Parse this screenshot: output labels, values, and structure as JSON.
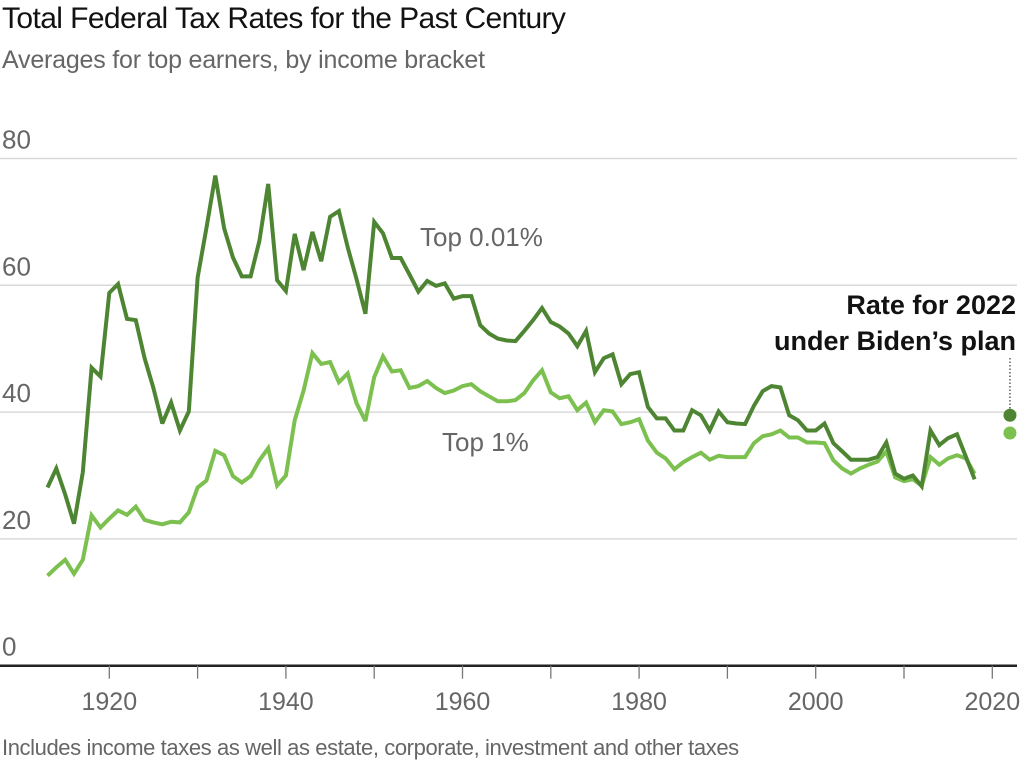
{
  "chart_data": {
    "type": "line",
    "title": "Total Federal Tax Rates for the Past Century",
    "subtitle": "Averages for top earners, by income bracket",
    "note": "Includes income taxes as well as estate, corporate, investment and other taxes",
    "xlabel": "",
    "ylabel": "",
    "xlim": [
      1913,
      2022
    ],
    "ylim": [
      0,
      80
    ],
    "grid": true,
    "yticks": [
      0,
      20,
      40,
      60,
      80
    ],
    "ytick_labels": [
      "0",
      "20",
      "40",
      "60",
      "80"
    ],
    "xticks": [
      1920,
      1930,
      1940,
      1950,
      1960,
      1970,
      1980,
      1990,
      2000,
      2010,
      2020
    ],
    "xtick_labels": [
      "1920",
      "",
      "1940",
      "",
      "1960",
      "",
      "1980",
      "",
      "2000",
      "",
      "2020"
    ],
    "x": [
      1913,
      1914,
      1915,
      1916,
      1917,
      1918,
      1919,
      1920,
      1921,
      1922,
      1923,
      1924,
      1925,
      1926,
      1927,
      1928,
      1929,
      1930,
      1931,
      1932,
      1933,
      1934,
      1935,
      1936,
      1937,
      1938,
      1939,
      1940,
      1941,
      1942,
      1943,
      1944,
      1945,
      1946,
      1947,
      1948,
      1949,
      1950,
      1951,
      1952,
      1953,
      1954,
      1955,
      1956,
      1957,
      1958,
      1959,
      1960,
      1961,
      1962,
      1963,
      1964,
      1965,
      1966,
      1967,
      1968,
      1969,
      1970,
      1971,
      1972,
      1973,
      1974,
      1975,
      1976,
      1977,
      1978,
      1979,
      1980,
      1981,
      1982,
      1983,
      1984,
      1985,
      1986,
      1987,
      1988,
      1989,
      1990,
      1991,
      1992,
      1993,
      1994,
      1995,
      1996,
      1997,
      1998,
      1999,
      2000,
      2001,
      2002,
      2003,
      2004,
      2005,
      2006,
      2007,
      2008,
      2009,
      2010,
      2011,
      2012,
      2013,
      2014,
      2015,
      2016,
      2017,
      2018
    ],
    "series": [
      {
        "name": "Top 0.01%",
        "label": "Top 0.01%",
        "color": "#4e8533",
        "values": [
          28.1,
          31.1,
          27.0,
          22.4,
          30.5,
          47.0,
          45.6,
          58.8,
          60.2,
          54.7,
          54.5,
          48.5,
          43.8,
          38.2,
          41.5,
          37.1,
          40.1,
          61.2,
          69.0,
          77.3,
          69.0,
          64.4,
          61.4,
          61.4,
          67.0,
          76.0,
          60.8,
          59.1,
          68.1,
          62.4,
          68.4,
          63.8,
          70.8,
          71.7,
          66.0,
          61.0,
          55.5,
          70.0,
          68.2,
          64.3,
          64.3,
          61.7,
          59.0,
          60.7,
          59.9,
          60.3,
          57.9,
          58.3,
          58.3,
          53.7,
          52.4,
          51.6,
          51.3,
          51.2,
          52.8,
          54.5,
          56.4,
          54.2,
          53.5,
          52.4,
          50.4,
          52.8,
          46.3,
          48.5,
          49.1,
          44.4,
          46.0,
          46.3,
          40.8,
          39.0,
          39.0,
          37.1,
          37.1,
          40.3,
          39.5,
          37.1,
          40.1,
          38.4,
          38.2,
          38.1,
          41.0,
          43.3,
          44.1,
          43.9,
          39.5,
          38.7,
          37.1,
          37.1,
          38.2,
          35.1,
          33.8,
          32.5,
          32.5,
          32.5,
          32.9,
          35.2,
          30.3,
          29.5,
          30.0,
          28.3,
          37.1,
          34.8,
          35.9,
          36.5,
          33.0,
          29.4
        ]
      },
      {
        "name": "Top 1%",
        "label": "Top 1%",
        "color": "#7cc04f",
        "values": [
          14.2,
          15.5,
          16.7,
          14.5,
          16.7,
          23.7,
          21.8,
          23.2,
          24.5,
          23.8,
          25.1,
          23.0,
          22.6,
          22.3,
          22.7,
          22.6,
          24.2,
          28.1,
          29.2,
          33.9,
          33.2,
          29.9,
          28.9,
          29.9,
          32.4,
          34.3,
          28.4,
          30.0,
          38.7,
          43.4,
          49.3,
          47.6,
          47.9,
          44.7,
          46.1,
          41.4,
          38.6,
          45.5,
          48.8,
          46.4,
          46.6,
          43.8,
          44.1,
          44.9,
          43.8,
          43.0,
          43.4,
          44.1,
          44.4,
          43.3,
          42.5,
          41.7,
          41.7,
          41.9,
          43.0,
          45.0,
          46.6,
          43.1,
          42.2,
          42.5,
          40.3,
          41.5,
          38.4,
          40.3,
          40.1,
          38.1,
          38.4,
          38.9,
          35.5,
          33.6,
          32.7,
          31.0,
          32.1,
          32.9,
          33.6,
          32.5,
          33.1,
          32.9,
          32.9,
          32.9,
          35.1,
          36.2,
          36.5,
          37.1,
          36.0,
          36.0,
          35.2,
          35.2,
          35.1,
          32.4,
          31.1,
          30.3,
          31.1,
          31.7,
          32.2,
          33.8,
          29.7,
          29.1,
          29.4,
          28.4,
          32.9,
          31.7,
          32.7,
          33.2,
          32.7,
          30.3
        ]
      }
    ],
    "projection": {
      "year": 2022,
      "annotation_line1": "Rate for 2022",
      "annotation_line2": "under Biden’s plan",
      "points": [
        {
          "series": "Top 0.01%",
          "value": 39.5,
          "color": "#4e8533"
        },
        {
          "series": "Top 1%",
          "value": 36.7,
          "color": "#7cc04f"
        }
      ]
    },
    "colors": {
      "gridline": "#d9d9d9",
      "axis": "#222222",
      "label_gray": "#666666"
    }
  }
}
